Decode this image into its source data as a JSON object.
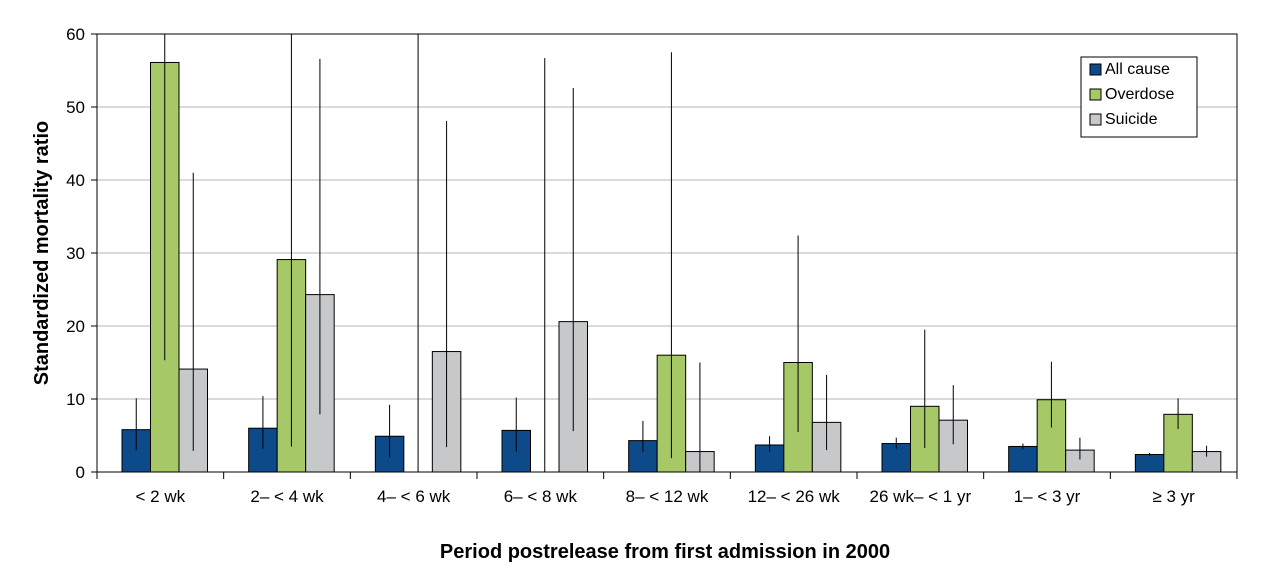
{
  "chart_data": {
    "type": "bar",
    "title": "",
    "xlabel": "Period postrelease from first admission in 2000",
    "ylabel": "Standardized mortality ratio",
    "ylim": [
      0,
      60
    ],
    "yticks": [
      0,
      10,
      20,
      30,
      40,
      50,
      60
    ],
    "grid": true,
    "legend_position": "top-right",
    "categories": [
      "< 2 wk",
      "2– < 4 wk",
      "4– < 6 wk",
      "6– < 8 wk",
      "8– < 12 wk",
      "12– < 26 wk",
      "26 wk– < 1 yr",
      "1– < 3 yr",
      "≥ 3 yr"
    ],
    "series": [
      {
        "name": "All cause",
        "color": "#0d4a8a",
        "values": [
          5.8,
          6.0,
          4.9,
          5.7,
          4.3,
          3.7,
          3.9,
          3.5,
          2.4
        ],
        "ci_low": [
          3.0,
          3.2,
          2.0,
          2.8,
          2.8,
          2.8,
          3.2,
          3.1,
          2.2
        ],
        "ci_high": [
          10.1,
          10.4,
          9.2,
          10.2,
          7.0,
          4.9,
          4.7,
          3.9,
          2.6
        ]
      },
      {
        "name": "Overdose",
        "color": "#a6c866",
        "values": [
          56.1,
          29.1,
          null,
          null,
          16.0,
          15.0,
          9.0,
          9.9,
          7.9
        ],
        "ci_low": [
          15.3,
          3.5,
          null,
          null,
          1.9,
          5.5,
          3.3,
          6.1,
          5.9
        ],
        "ci_high": [
          60,
          60,
          null,
          null,
          57.5,
          32.4,
          19.5,
          15.1,
          10.1
        ]
      },
      {
        "name": "Suicide",
        "color": "#c7c8ca",
        "values": [
          14.1,
          24.3,
          16.5,
          20.6,
          2.8,
          6.8,
          7.1,
          3.0,
          2.8
        ],
        "ci_low": [
          2.9,
          7.9,
          3.4,
          5.6,
          0.0,
          3.0,
          3.8,
          1.7,
          2.1
        ],
        "ci_high": [
          41.0,
          56.6,
          48.1,
          52.6,
          15.0,
          13.3,
          11.9,
          4.7,
          3.6
        ]
      }
    ],
    "extra_error_bars": [
      {
        "category_index": 2,
        "series": "Overdose",
        "ci_low": 0,
        "ci_high": 60
      },
      {
        "category_index": 3,
        "series": "Overdose",
        "ci_low": 0,
        "ci_high": 56.7
      }
    ]
  }
}
